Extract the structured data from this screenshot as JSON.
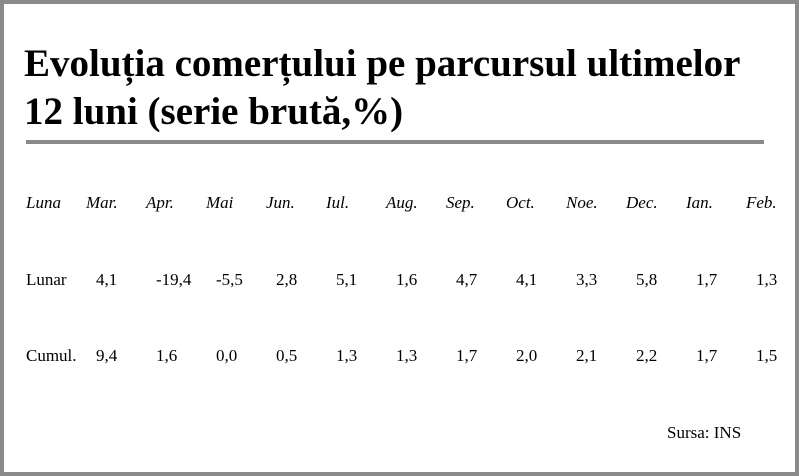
{
  "title": "Evoluția comerțului pe parcursul ultimelor 12 luni (serie brută,%)",
  "table": {
    "header": [
      "Luna",
      "Mar.",
      "Apr.",
      "Mai",
      "Jun.",
      "Iul.",
      "Aug.",
      "Sep.",
      "Oct.",
      "Noe.",
      "Dec.",
      "Ian.",
      "Feb."
    ],
    "rows": [
      [
        "Lunar",
        "4,1",
        "-19,4",
        "-5,5",
        "2,8",
        "5,1",
        "1,6",
        "4,7",
        "4,1",
        "3,3",
        "5,8",
        "1,7",
        "1,3"
      ],
      [
        "Cumul.",
        "9,4",
        "1,6",
        "0,0",
        "0,5",
        "1,3",
        "1,3",
        "1,7",
        "2,0",
        "2,1",
        "2,2",
        "1,7",
        "1,5"
      ]
    ]
  },
  "source": "Sursa: INS"
}
